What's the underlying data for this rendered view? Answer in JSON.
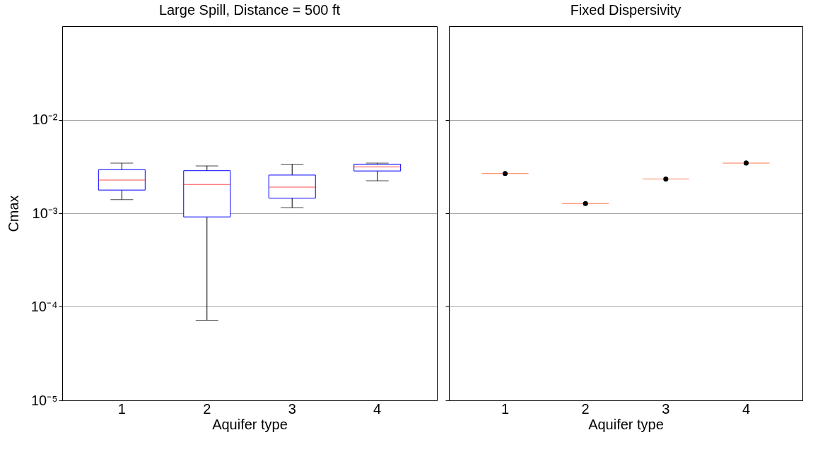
{
  "chart_data": [
    {
      "type": "box",
      "title": "Large Spill, Distance = 500 ft",
      "xlabel": "Aquifer type",
      "ylabel": "Cmax",
      "categories": [
        "1",
        "2",
        "3",
        "4"
      ],
      "log": true,
      "grid": "y",
      "ylim": [
        1e-05,
        0.1
      ],
      "yticks": [
        {
          "value": 1e-05,
          "label": "10⁻⁵"
        },
        {
          "value": 0.0001,
          "label": "10⁻⁴"
        },
        {
          "value": 0.001,
          "label": "10⁻³"
        },
        {
          "value": 0.01,
          "label": "10⁻²"
        }
      ],
      "series": [
        {
          "color": "#0000ff",
          "boxes": [
            {
              "low": 0.0014,
              "q1": 0.00177,
              "median": 0.00226,
              "q3": 0.00292,
              "high": 0.00344
            },
            {
              "low": 7.2e-05,
              "q1": 0.000914,
              "median": 0.00203,
              "q3": 0.00285,
              "high": 0.00321
            },
            {
              "low": 0.00115,
              "q1": 0.00145,
              "median": 0.0019,
              "q3": 0.00256,
              "high": 0.00335
            },
            {
              "low": 0.00222,
              "q1": 0.00283,
              "median": 0.00314,
              "q3": 0.00335,
              "high": 0.00344
            }
          ]
        }
      ]
    },
    {
      "type": "box",
      "title": "Fixed Dispersivity",
      "xlabel": "Aquifer type",
      "categories": [
        "1",
        "2",
        "3",
        "4"
      ],
      "log": true,
      "grid": "y",
      "tick_labels": "x",
      "ylim": [
        1e-05,
        0.1
      ],
      "yticks": [
        {
          "value": 1e-05,
          "label": null
        },
        {
          "value": 0.0001,
          "label": null
        },
        {
          "value": 0.001,
          "label": null
        },
        {
          "value": 0.01,
          "label": null
        }
      ],
      "series": [
        {
          "color": "#ff4000",
          "boxes": [
            {
              "low": 0.00266,
              "q1": 0.00266,
              "median": 0.00266,
              "q3": 0.00266,
              "high": 0.00266,
              "mean": 0.00266
            },
            {
              "low": 0.00127,
              "q1": 0.00127,
              "median": 0.00127,
              "q3": 0.00127,
              "high": 0.00127,
              "mean": 0.00127
            },
            {
              "low": 0.00232,
              "q1": 0.00232,
              "median": 0.00232,
              "q3": 0.00232,
              "high": 0.00232,
              "mean": 0.00232
            },
            {
              "low": 0.00344,
              "q1": 0.00344,
              "median": 0.00344,
              "q3": 0.00344,
              "high": 0.00344,
              "mean": 0.00344
            }
          ]
        }
      ]
    }
  ]
}
